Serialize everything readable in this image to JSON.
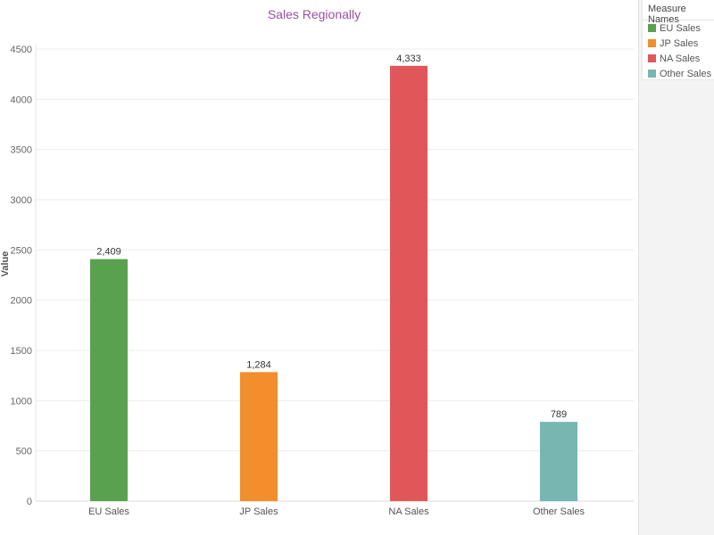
{
  "chart_data": {
    "type": "bar",
    "title": "Sales Regionally",
    "xlabel": "",
    "ylabel": "Value",
    "categories": [
      "EU Sales",
      "JP Sales",
      "NA Sales",
      "Other Sales"
    ],
    "values": [
      2409,
      1284,
      4333,
      789
    ],
    "data_labels": [
      "2,409",
      "1,284",
      "4,333",
      "789"
    ],
    "colors": [
      "#59a14f",
      "#f28e2b",
      "#e15759",
      "#76b7b2"
    ],
    "ylim": [
      0,
      4500
    ],
    "yticks": [
      0,
      500,
      1000,
      1500,
      2000,
      2500,
      3000,
      3500,
      4000,
      4500
    ],
    "grid": true,
    "legend_position": "right",
    "title_color": "#9b4ea6"
  },
  "legend": {
    "title": "Measure Names",
    "items": [
      {
        "label": "EU Sales",
        "color": "#59a14f"
      },
      {
        "label": "JP Sales",
        "color": "#f28e2b"
      },
      {
        "label": "NA Sales",
        "color": "#e15759"
      },
      {
        "label": "Other Sales",
        "color": "#76b7b2"
      }
    ]
  }
}
